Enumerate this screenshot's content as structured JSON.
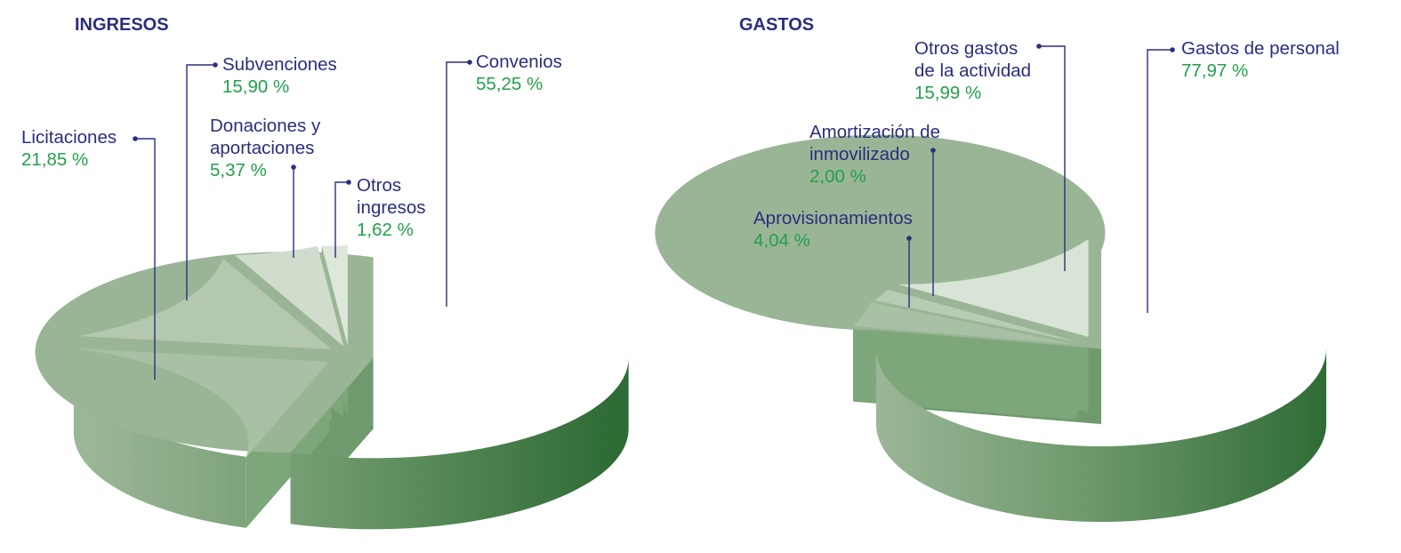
{
  "chart_data": [
    {
      "type": "pie",
      "title": "INGRESOS",
      "slices": [
        {
          "label": [
            "Convenios"
          ],
          "value": 55.25,
          "value_text": "55,25 %",
          "color": "#9ab596"
        },
        {
          "label": [
            "Licitaciones"
          ],
          "value": 21.85,
          "value_text": "21,85 %",
          "color": "#a8c0a4"
        },
        {
          "label": [
            "Subvenciones"
          ],
          "value": 15.9,
          "value_text": "15,90 %",
          "color": "#b3c8ae"
        },
        {
          "label": [
            "Donaciones y",
            "aportaciones"
          ],
          "value": 5.37,
          "value_text": "5,37 %",
          "color": "#d0ddcc"
        },
        {
          "label": [
            "Otros",
            "ingresos"
          ],
          "value": 1.62,
          "value_text": "1,62 %",
          "color": "#dde7da"
        }
      ]
    },
    {
      "type": "pie",
      "title": "GASTOS",
      "slices": [
        {
          "label": [
            "Gastos de personal"
          ],
          "value": 77.97,
          "value_text": "77,97 %",
          "color": "#9ab596"
        },
        {
          "label": [
            "Aprovisionamientos"
          ],
          "value": 4.04,
          "value_text": "4,04 %",
          "color": "#a8c0a4"
        },
        {
          "label": [
            "Amortización de",
            "inmovilizado"
          ],
          "value": 2.0,
          "value_text": "2,00 %",
          "color": "#b8cbb4"
        },
        {
          "label": [
            "Otros gastos",
            "de la actividad"
          ],
          "value": 15.99,
          "value_text": "15,99 %",
          "color": "#d8e4d5"
        }
      ]
    }
  ],
  "colors": {
    "title": "#2b2e7e",
    "label": "#2b2e7e",
    "value": "#22a04b",
    "side_light": "#9bb697",
    "side_dark": "#2e6b35"
  }
}
